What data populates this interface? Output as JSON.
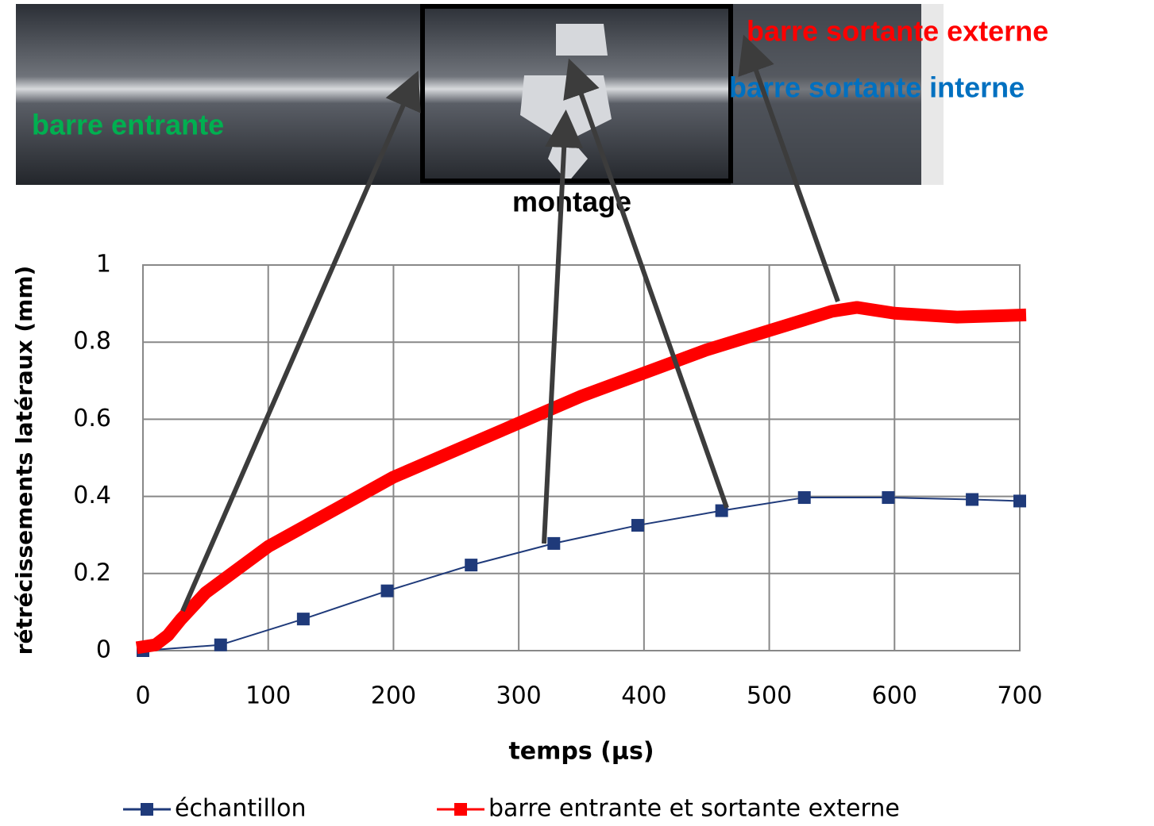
{
  "chart_data": {
    "type": "line",
    "annotations": [
      "barre sortante externe",
      "barre sortante interne",
      "barre entrante",
      "montage"
    ],
    "xlabel": "temps (µs)",
    "ylabel": "rétrécissements latéraux (mm)",
    "xlim": [
      0,
      700
    ],
    "xticks": [
      0,
      100,
      200,
      300,
      400,
      500,
      600,
      700
    ],
    "ylim": [
      0,
      1
    ],
    "yticks": [
      0,
      0.2,
      0.4,
      0.6,
      0.8,
      1
    ],
    "grid": true,
    "series": [
      {
        "name": "échantillon",
        "color": "#1f3a7a",
        "x": [
          0,
          62,
          128,
          195,
          262,
          328,
          395,
          462,
          528,
          595,
          662,
          700
        ],
        "values": [
          0,
          0.015,
          0.082,
          0.155,
          0.222,
          0.278,
          0.325,
          0.363,
          0.397,
          0.397,
          0.392,
          0.388
        ]
      },
      {
        "name": "barre entrante et sortante externe",
        "color": "#ff0000",
        "x": [
          0,
          10,
          20,
          30,
          50,
          75,
          100,
          150,
          200,
          250,
          300,
          350,
          400,
          450,
          500,
          550,
          570,
          600,
          650,
          700
        ],
        "values": [
          0.01,
          0.015,
          0.04,
          0.08,
          0.15,
          0.21,
          0.27,
          0.36,
          0.45,
          0.52,
          0.59,
          0.66,
          0.72,
          0.78,
          0.83,
          0.88,
          0.89,
          0.875,
          0.865,
          0.87
        ]
      }
    ]
  }
}
